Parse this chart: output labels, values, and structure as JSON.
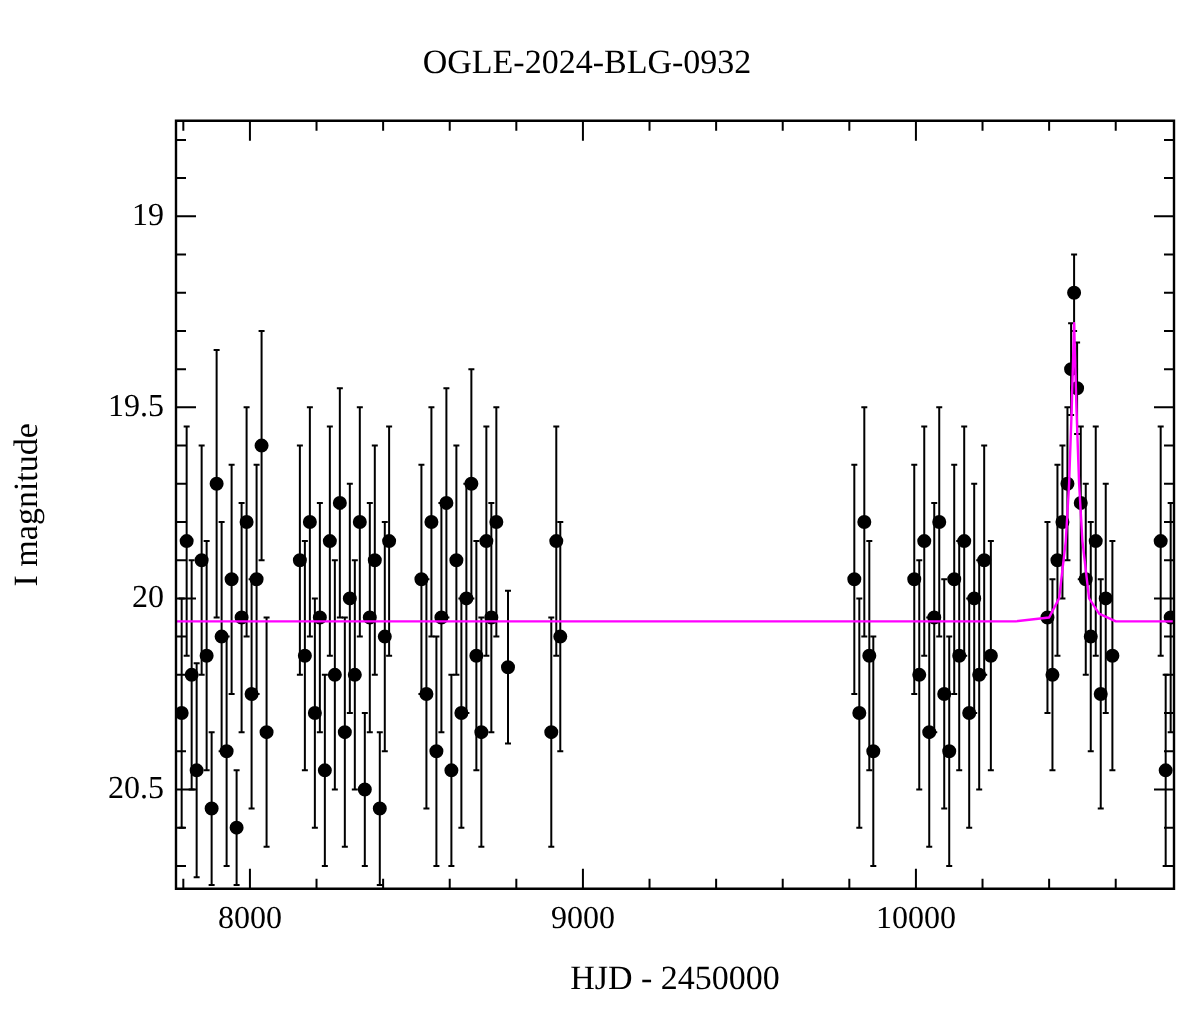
{
  "chart_data": {
    "type": "scatter",
    "title": "OGLE-2024-BLG-0932",
    "xlabel": "HJD - 2450000",
    "ylabel": "I magnitude",
    "xlim": [
      7778,
      10775
    ],
    "ylim": [
      20.76,
      18.75
    ],
    "xticks": [
      {
        "value": 7800,
        "label": null
      },
      8000,
      {
        "value": 8200,
        "label": null
      },
      {
        "value": 8400,
        "label": null
      },
      {
        "value": 8600,
        "label": null
      },
      {
        "value": 8800,
        "label": null
      },
      9000,
      {
        "value": 9200,
        "label": null
      },
      {
        "value": 9400,
        "label": null
      },
      {
        "value": 9600,
        "label": null
      },
      {
        "value": 9800,
        "label": null
      },
      10000,
      {
        "value": 10200,
        "label": null
      },
      {
        "value": 10400,
        "label": null
      },
      {
        "value": 10600,
        "label": null
      }
    ],
    "yticks": [
      {
        "value": 18.8,
        "label": null
      },
      {
        "value": 18.9,
        "label": null
      },
      19,
      {
        "value": 19.1,
        "label": null
      },
      {
        "value": 19.2,
        "label": null
      },
      {
        "value": 19.3,
        "label": null
      },
      {
        "value": 19.4,
        "label": null
      },
      19.5,
      {
        "value": 19.6,
        "label": null
      },
      {
        "value": 19.7,
        "label": null
      },
      {
        "value": 19.8,
        "label": null
      },
      {
        "value": 19.9,
        "label": null
      },
      20,
      {
        "value": 20.1,
        "label": null
      },
      {
        "value": 20.2,
        "label": null
      },
      {
        "value": 20.3,
        "label": null
      },
      {
        "value": 20.4,
        "label": null
      },
      20.5,
      {
        "value": 20.6,
        "label": null
      },
      {
        "value": 20.7,
        "label": null
      }
    ],
    "grid": false,
    "legend": false,
    "marker": "circle",
    "series": [
      {
        "color": "#000000",
        "x": [
          7795,
          7810,
          7825,
          7840,
          7855,
          7870,
          7885,
          7900,
          7915,
          7930,
          7945,
          7960,
          7975,
          7990,
          8005,
          8020,
          8035,
          8050,
          8150,
          8165,
          8180,
          8195,
          8210,
          8225,
          8240,
          8255,
          8270,
          8285,
          8300,
          8315,
          8330,
          8345,
          8360,
          8375,
          8390,
          8405,
          8418,
          8515,
          8530,
          8545,
          8560,
          8575,
          8590,
          8605,
          8620,
          8635,
          8650,
          8665,
          8680,
          8695,
          8710,
          8725,
          8740,
          8775,
          8905,
          8920,
          8932,
          9815,
          9830,
          9845,
          9860,
          9872,
          9995,
          10010,
          10025,
          10040,
          10055,
          10070,
          10085,
          10100,
          10115,
          10130,
          10145,
          10160,
          10175,
          10190,
          10205,
          10225,
          10395,
          10410,
          10425,
          10440,
          10455,
          10466,
          10475,
          10484,
          10495,
          10510,
          10525,
          10540,
          10555,
          10570,
          10590,
          10735,
          10750,
          10765
        ],
        "values": [
          20.3,
          19.85,
          20.2,
          20.45,
          19.9,
          20.15,
          20.55,
          19.7,
          20.1,
          20.4,
          19.95,
          20.6,
          20.05,
          19.8,
          20.25,
          19.95,
          19.6,
          20.35,
          19.9,
          20.15,
          19.8,
          20.3,
          20.05,
          20.45,
          19.85,
          20.2,
          19.75,
          20.35,
          20.0,
          20.2,
          19.8,
          20.5,
          20.05,
          19.9,
          20.55,
          20.1,
          19.85,
          19.95,
          20.25,
          19.8,
          20.4,
          20.05,
          19.75,
          20.45,
          19.9,
          20.3,
          20.0,
          19.7,
          20.15,
          20.35,
          19.85,
          20.05,
          19.8,
          20.18,
          20.35,
          19.85,
          20.1,
          19.95,
          20.3,
          19.8,
          20.15,
          20.4,
          19.95,
          20.2,
          19.85,
          20.35,
          20.05,
          19.8,
          20.25,
          20.4,
          19.95,
          20.15,
          19.85,
          20.3,
          20.0,
          20.2,
          19.9,
          20.15,
          20.05,
          20.2,
          19.9,
          19.8,
          19.7,
          19.4,
          19.2,
          19.45,
          19.75,
          19.95,
          20.1,
          19.85,
          20.25,
          20.0,
          20.15,
          19.85,
          20.45,
          20.05
        ],
        "errors": [
          0.3,
          0.3,
          0.3,
          0.28,
          0.3,
          0.3,
          0.2,
          0.35,
          0.3,
          0.3,
          0.3,
          0.15,
          0.3,
          0.3,
          0.3,
          0.3,
          0.3,
          0.3,
          0.3,
          0.3,
          0.3,
          0.3,
          0.3,
          0.25,
          0.3,
          0.3,
          0.3,
          0.3,
          0.3,
          0.3,
          0.3,
          0.2,
          0.3,
          0.3,
          0.2,
          0.3,
          0.3,
          0.3,
          0.3,
          0.3,
          0.3,
          0.3,
          0.3,
          0.25,
          0.3,
          0.3,
          0.3,
          0.3,
          0.3,
          0.3,
          0.3,
          0.3,
          0.3,
          0.2,
          0.3,
          0.3,
          0.3,
          0.3,
          0.3,
          0.3,
          0.3,
          0.3,
          0.3,
          0.3,
          0.3,
          0.3,
          0.3,
          0.3,
          0.3,
          0.3,
          0.3,
          0.3,
          0.3,
          0.3,
          0.3,
          0.3,
          0.3,
          0.3,
          0.25,
          0.25,
          0.25,
          0.2,
          0.2,
          0.12,
          0.1,
          0.12,
          0.2,
          0.25,
          0.3,
          0.3,
          0.3,
          0.3,
          0.3,
          0.3,
          0.25,
          0.3
        ]
      },
      {
        "type": "line",
        "color": "#ff00ff",
        "marker": "none",
        "line_style": "solid",
        "x": [
          7778,
          10300,
          10400,
          10430,
          10450,
          10460,
          10468,
          10475,
          10482,
          10490,
          10500,
          10520,
          10550,
          10600,
          10775
        ],
        "values": [
          20.06,
          20.06,
          20.05,
          20.0,
          19.85,
          19.7,
          19.5,
          19.28,
          19.5,
          19.7,
          19.85,
          20.0,
          20.04,
          20.06,
          20.06
        ]
      }
    ]
  }
}
